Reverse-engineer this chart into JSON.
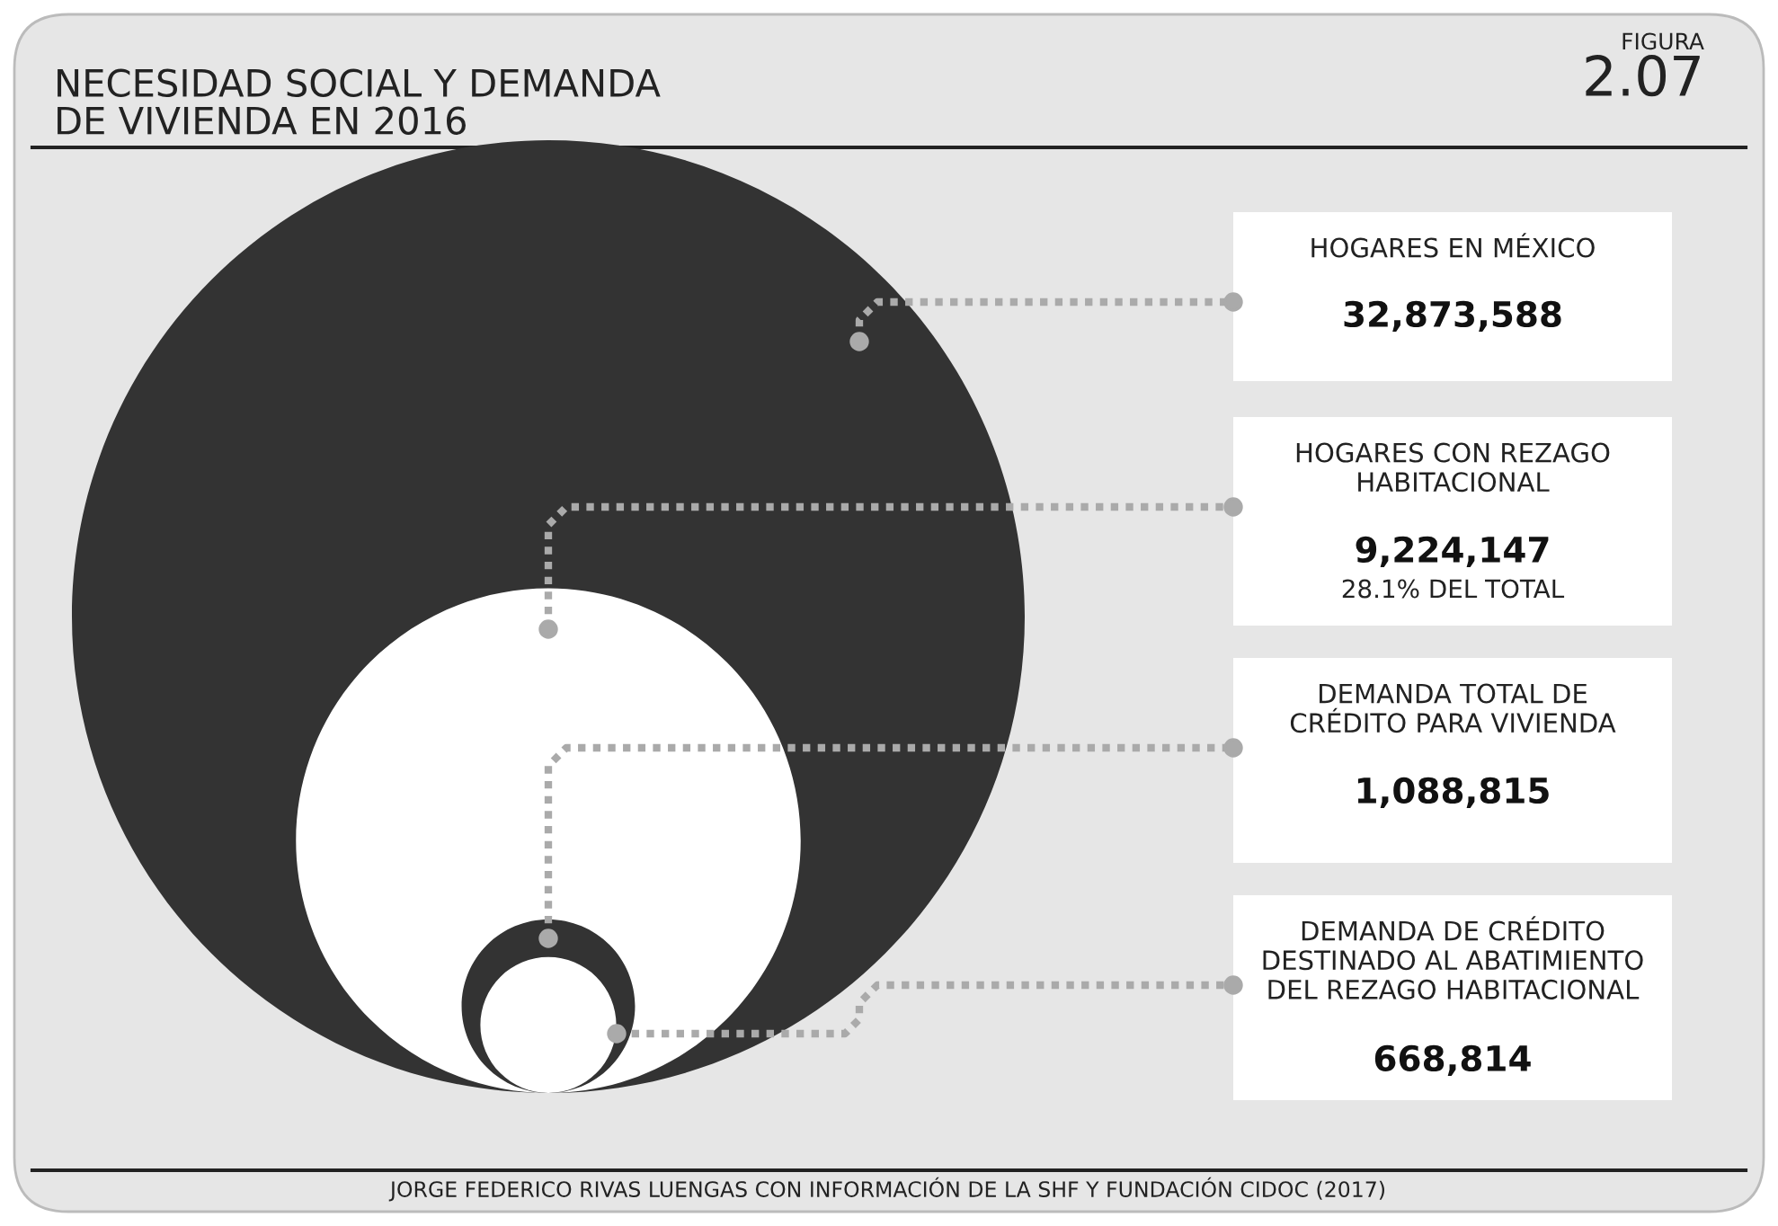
{
  "chart_data": {
    "type": "other",
    "title": "NECESIDAD SOCIAL Y DEMANDA\nDE VIVIENDA EN 2016",
    "categories": [
      "HOGARES EN MÉXICO",
      "HOGARES CON REZAGO\nHABITACIONAL",
      "DEMANDA TOTAL DE\nCRÉDITO PARA VIVIENDA",
      "DEMANDA DE CRÉDITO\nDESTINADO AL ABATIMIENTO\nDEL REZAGO HABITACIONAL"
    ],
    "values": [
      32873588,
      9224147,
      1088815,
      668814
    ],
    "value_labels": [
      "32,873,588",
      "9,224,147",
      "1,088,815",
      "668,814"
    ],
    "annotations": [
      "FIGURA",
      "2.07",
      "28.1% DEL TOTAL",
      "JORGE FEDERICO RIVAS LUENGAS CON INFORMACIÓN DE LA SHF Y FUNDACIÓN CIDOC (2017)"
    ]
  }
}
